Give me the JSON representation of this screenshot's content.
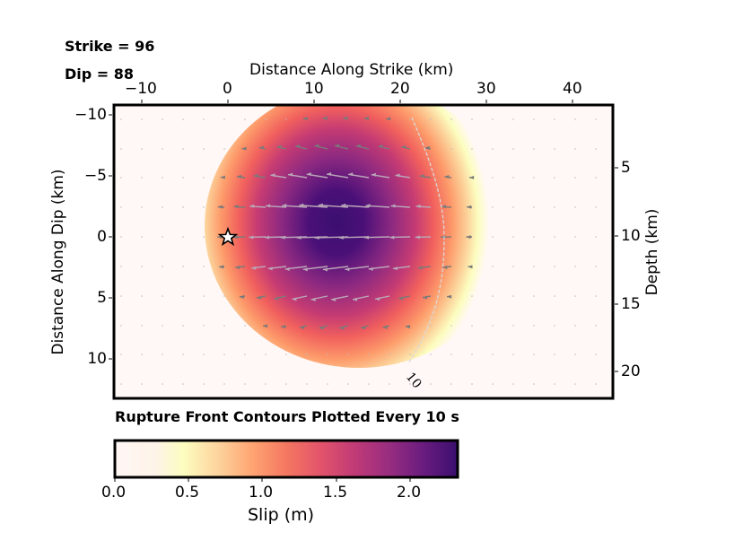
{
  "header": {
    "strike_label": "Strike = 96",
    "dip_label": "Dip = 88"
  },
  "axes": {
    "top_xlabel": "Distance Along Strike (km)",
    "left_ylabel": "Distance Along Dip (km)",
    "right_ylabel": "Depth (km)",
    "x_ticks": [
      "−10",
      "0",
      "10",
      "20",
      "30",
      "40"
    ],
    "y_ticks": [
      "−10",
      "−5",
      "0",
      "5",
      "10"
    ],
    "depth_ticks": [
      "5",
      "10",
      "15",
      "20"
    ]
  },
  "contour": {
    "label": "10",
    "caption": "Rupture Front Contours Plotted Every 10 s"
  },
  "colorbar": {
    "ticks": [
      "0.0",
      "0.5",
      "1.0",
      "1.5",
      "2.0"
    ],
    "label": "Slip (m)",
    "colormap": "magma_r",
    "vmin": 0.0,
    "vmax": 2.3
  },
  "hypocenter": {
    "icon": "star-icon",
    "strike_km": 0,
    "dip_km": 0
  },
  "chart_data": {
    "type": "heatmap",
    "title": "",
    "annotations": [
      "Strike = 96",
      "Dip = 88",
      "Rupture Front Contours Plotted Every 10 s"
    ],
    "xlabel": "Distance Along Strike (km)",
    "ylabel": "Distance Along Dip (km)",
    "ylabel_right": "Depth (km)",
    "xlim": [
      -13,
      45
    ],
    "ylim": [
      -10.9,
      13.2
    ],
    "y_inverted": true,
    "x_ticks": [
      -10,
      0,
      10,
      20,
      30,
      40
    ],
    "y_ticks": [
      -10,
      -5,
      0,
      5,
      10
    ],
    "depth_ticks": [
      5,
      10,
      15,
      20
    ],
    "colorbar": {
      "label": "Slip (m)",
      "range": [
        0.0,
        2.3
      ],
      "ticks": [
        0.0,
        0.5,
        1.0,
        1.5,
        2.0
      ],
      "colormap": "magma_r"
    },
    "slip_patch": {
      "peak_slip_m": 2.3,
      "peak_location_km": {
        "strike": 12.5,
        "dip": -1.0
      },
      "extent_km": {
        "strike": [
          1,
          30
        ],
        "dip": [
          -10,
          10
        ]
      }
    },
    "hypocenter": {
      "strike_km": 0,
      "dip_km": 0,
      "marker": "star"
    },
    "rupture_contours": [
      {
        "time_s": 10,
        "approx_strike_km": [
          21,
          25
        ],
        "dip_span_km": [
          -9.5,
          11
        ]
      }
    ],
    "rake_vectors": "grid of arrows pointing roughly in -strike direction, magnitude scaled by slip",
    "grid": false
  }
}
